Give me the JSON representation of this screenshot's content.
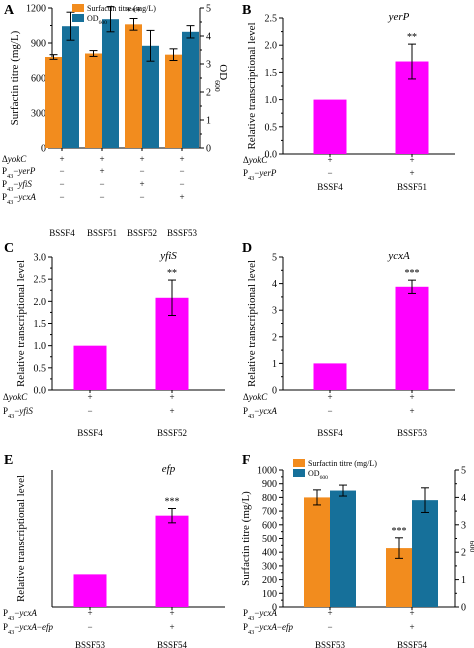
{
  "figure": {
    "panel_letters": [
      "A",
      "B",
      "C",
      "D",
      "E",
      "F"
    ]
  },
  "chart_data": [
    {
      "panel": "A",
      "type": "bar",
      "categories": [
        "BSSF4",
        "BSSF51",
        "BSSF52",
        "BSSF53"
      ],
      "series": [
        {
          "name": "Surfactin titre (mg/L)",
          "axis": "left",
          "color": "#F28C1E",
          "values": [
            780,
            810,
            1060,
            800
          ],
          "errors": [
            20,
            25,
            50,
            50
          ]
        },
        {
          "name": "OD600",
          "axis": "right",
          "color": "#16709A",
          "values": [
            4.35,
            4.6,
            3.65,
            4.15
          ],
          "errors": [
            0.5,
            0.45,
            0.55,
            0.22
          ]
        }
      ],
      "ylabel_left": "Surfactin titre (mg/L)",
      "ylabel_right": "OD600",
      "ylim_left": [
        0,
        1200
      ],
      "yticks_left": [
        "0",
        "300",
        "600",
        "900",
        "1200"
      ],
      "ylim_right": [
        0,
        5
      ],
      "yticks_right": [
        "0",
        "1",
        "2",
        "3",
        "4",
        "5"
      ],
      "significance": [
        "",
        "",
        "***",
        ""
      ],
      "genotype_rows": [
        {
          "label": "ΔyokC",
          "marks": [
            "+",
            "+",
            "+",
            "+"
          ]
        },
        {
          "label": "P43−yerP",
          "marks": [
            "−",
            "+",
            "−",
            "−"
          ]
        },
        {
          "label": "P43−yfiS",
          "marks": [
            "−",
            "−",
            "+",
            "−"
          ]
        },
        {
          "label": "P43−ycxA",
          "marks": [
            "−",
            "−",
            "−",
            "+"
          ]
        }
      ],
      "legend_position": "top"
    },
    {
      "panel": "B",
      "type": "bar",
      "title": "yerP",
      "categories": [
        "BSSF4",
        "BSSF51"
      ],
      "values": [
        1.0,
        1.7
      ],
      "errors": [
        0,
        0.32
      ],
      "color": "#FF00FF",
      "ylabel": "Relative transcriptional level",
      "ylim": [
        0,
        2.5
      ],
      "yticks": [
        "0.0",
        "0.5",
        "1.0",
        "1.5",
        "2.0",
        "2.5"
      ],
      "significance": [
        "",
        "**"
      ],
      "genotype_rows": [
        {
          "label": "ΔyokC",
          "marks": [
            "+",
            "+"
          ]
        },
        {
          "label": "P43−yerP",
          "marks": [
            "−",
            "+"
          ]
        }
      ]
    },
    {
      "panel": "C",
      "type": "bar",
      "title": "yfiS",
      "categories": [
        "BSSF4",
        "BSSF52"
      ],
      "values": [
        1.0,
        2.08
      ],
      "errors": [
        0,
        0.4
      ],
      "color": "#FF00FF",
      "ylabel": "Relative transcriptional level",
      "ylim": [
        0,
        3.0
      ],
      "yticks": [
        "0.0",
        "0.5",
        "1.0",
        "1.5",
        "2.0",
        "2.5",
        "3.0"
      ],
      "significance": [
        "",
        "**"
      ],
      "genotype_rows": [
        {
          "label": "ΔyokC",
          "marks": [
            "+",
            "+"
          ]
        },
        {
          "label": "P43−yfiS",
          "marks": [
            "−",
            "+"
          ]
        }
      ]
    },
    {
      "panel": "D",
      "type": "bar",
      "title": "ycxA",
      "categories": [
        "BSSF4",
        "BSSF53"
      ],
      "values": [
        1.0,
        3.88
      ],
      "errors": [
        0,
        0.25
      ],
      "color": "#FF00FF",
      "ylabel": "Relative transcriptional level",
      "ylim": [
        0,
        5
      ],
      "yticks": [
        "0",
        "1",
        "2",
        "3",
        "4",
        "5"
      ],
      "significance": [
        "",
        "***"
      ],
      "genotype_rows": [
        {
          "label": "ΔyokC",
          "marks": [
            "+",
            "+"
          ]
        },
        {
          "label": "P43−ycxA",
          "marks": [
            "−",
            "+"
          ]
        }
      ]
    },
    {
      "panel": "E",
      "type": "bar",
      "title": "efp",
      "categories": [
        "BSSF53",
        "BSSF54"
      ],
      "values": [
        1.0,
        2.8
      ],
      "errors": [
        0,
        0.22
      ],
      "color": "#FF00FF",
      "ylabel": "Relative transcriptional level",
      "ylim": [
        0,
        4.2
      ],
      "yticks": [],
      "significance": [
        "",
        "***"
      ],
      "genotype_rows": [
        {
          "label": "P43−ycxA",
          "marks": [
            "+",
            "+"
          ]
        },
        {
          "label": "P43−ycxA−efp",
          "marks": [
            "−",
            "+"
          ]
        }
      ]
    },
    {
      "panel": "F",
      "type": "bar",
      "categories": [
        "BSSF53",
        "BSSF54"
      ],
      "series": [
        {
          "name": "Surfactin titre (mg/L)",
          "axis": "left",
          "color": "#F28C1E",
          "values": [
            800,
            430
          ],
          "errors": [
            55,
            75
          ]
        },
        {
          "name": "OD600",
          "axis": "right",
          "color": "#16709A",
          "values": [
            4.25,
            3.9
          ],
          "errors": [
            0.2,
            0.45
          ]
        }
      ],
      "ylabel_left": "Surfactin titre (mg/L)",
      "ylabel_right": "OD600",
      "ylim_left": [
        0,
        1000
      ],
      "yticks_left": [
        "0",
        "100",
        "200",
        "300",
        "400",
        "500",
        "600",
        "700",
        "800",
        "900",
        "1000"
      ],
      "ylim_right": [
        0,
        5
      ],
      "yticks_right": [
        "0",
        "1",
        "2",
        "3",
        "4",
        "5"
      ],
      "significance": [
        "",
        "***"
      ],
      "genotype_rows": [
        {
          "label": "P43−ycxA",
          "marks": [
            "+",
            "+"
          ]
        },
        {
          "label": "P43−ycxA−efp",
          "marks": [
            "−",
            "+"
          ]
        }
      ],
      "legend_position": "top-left"
    }
  ]
}
